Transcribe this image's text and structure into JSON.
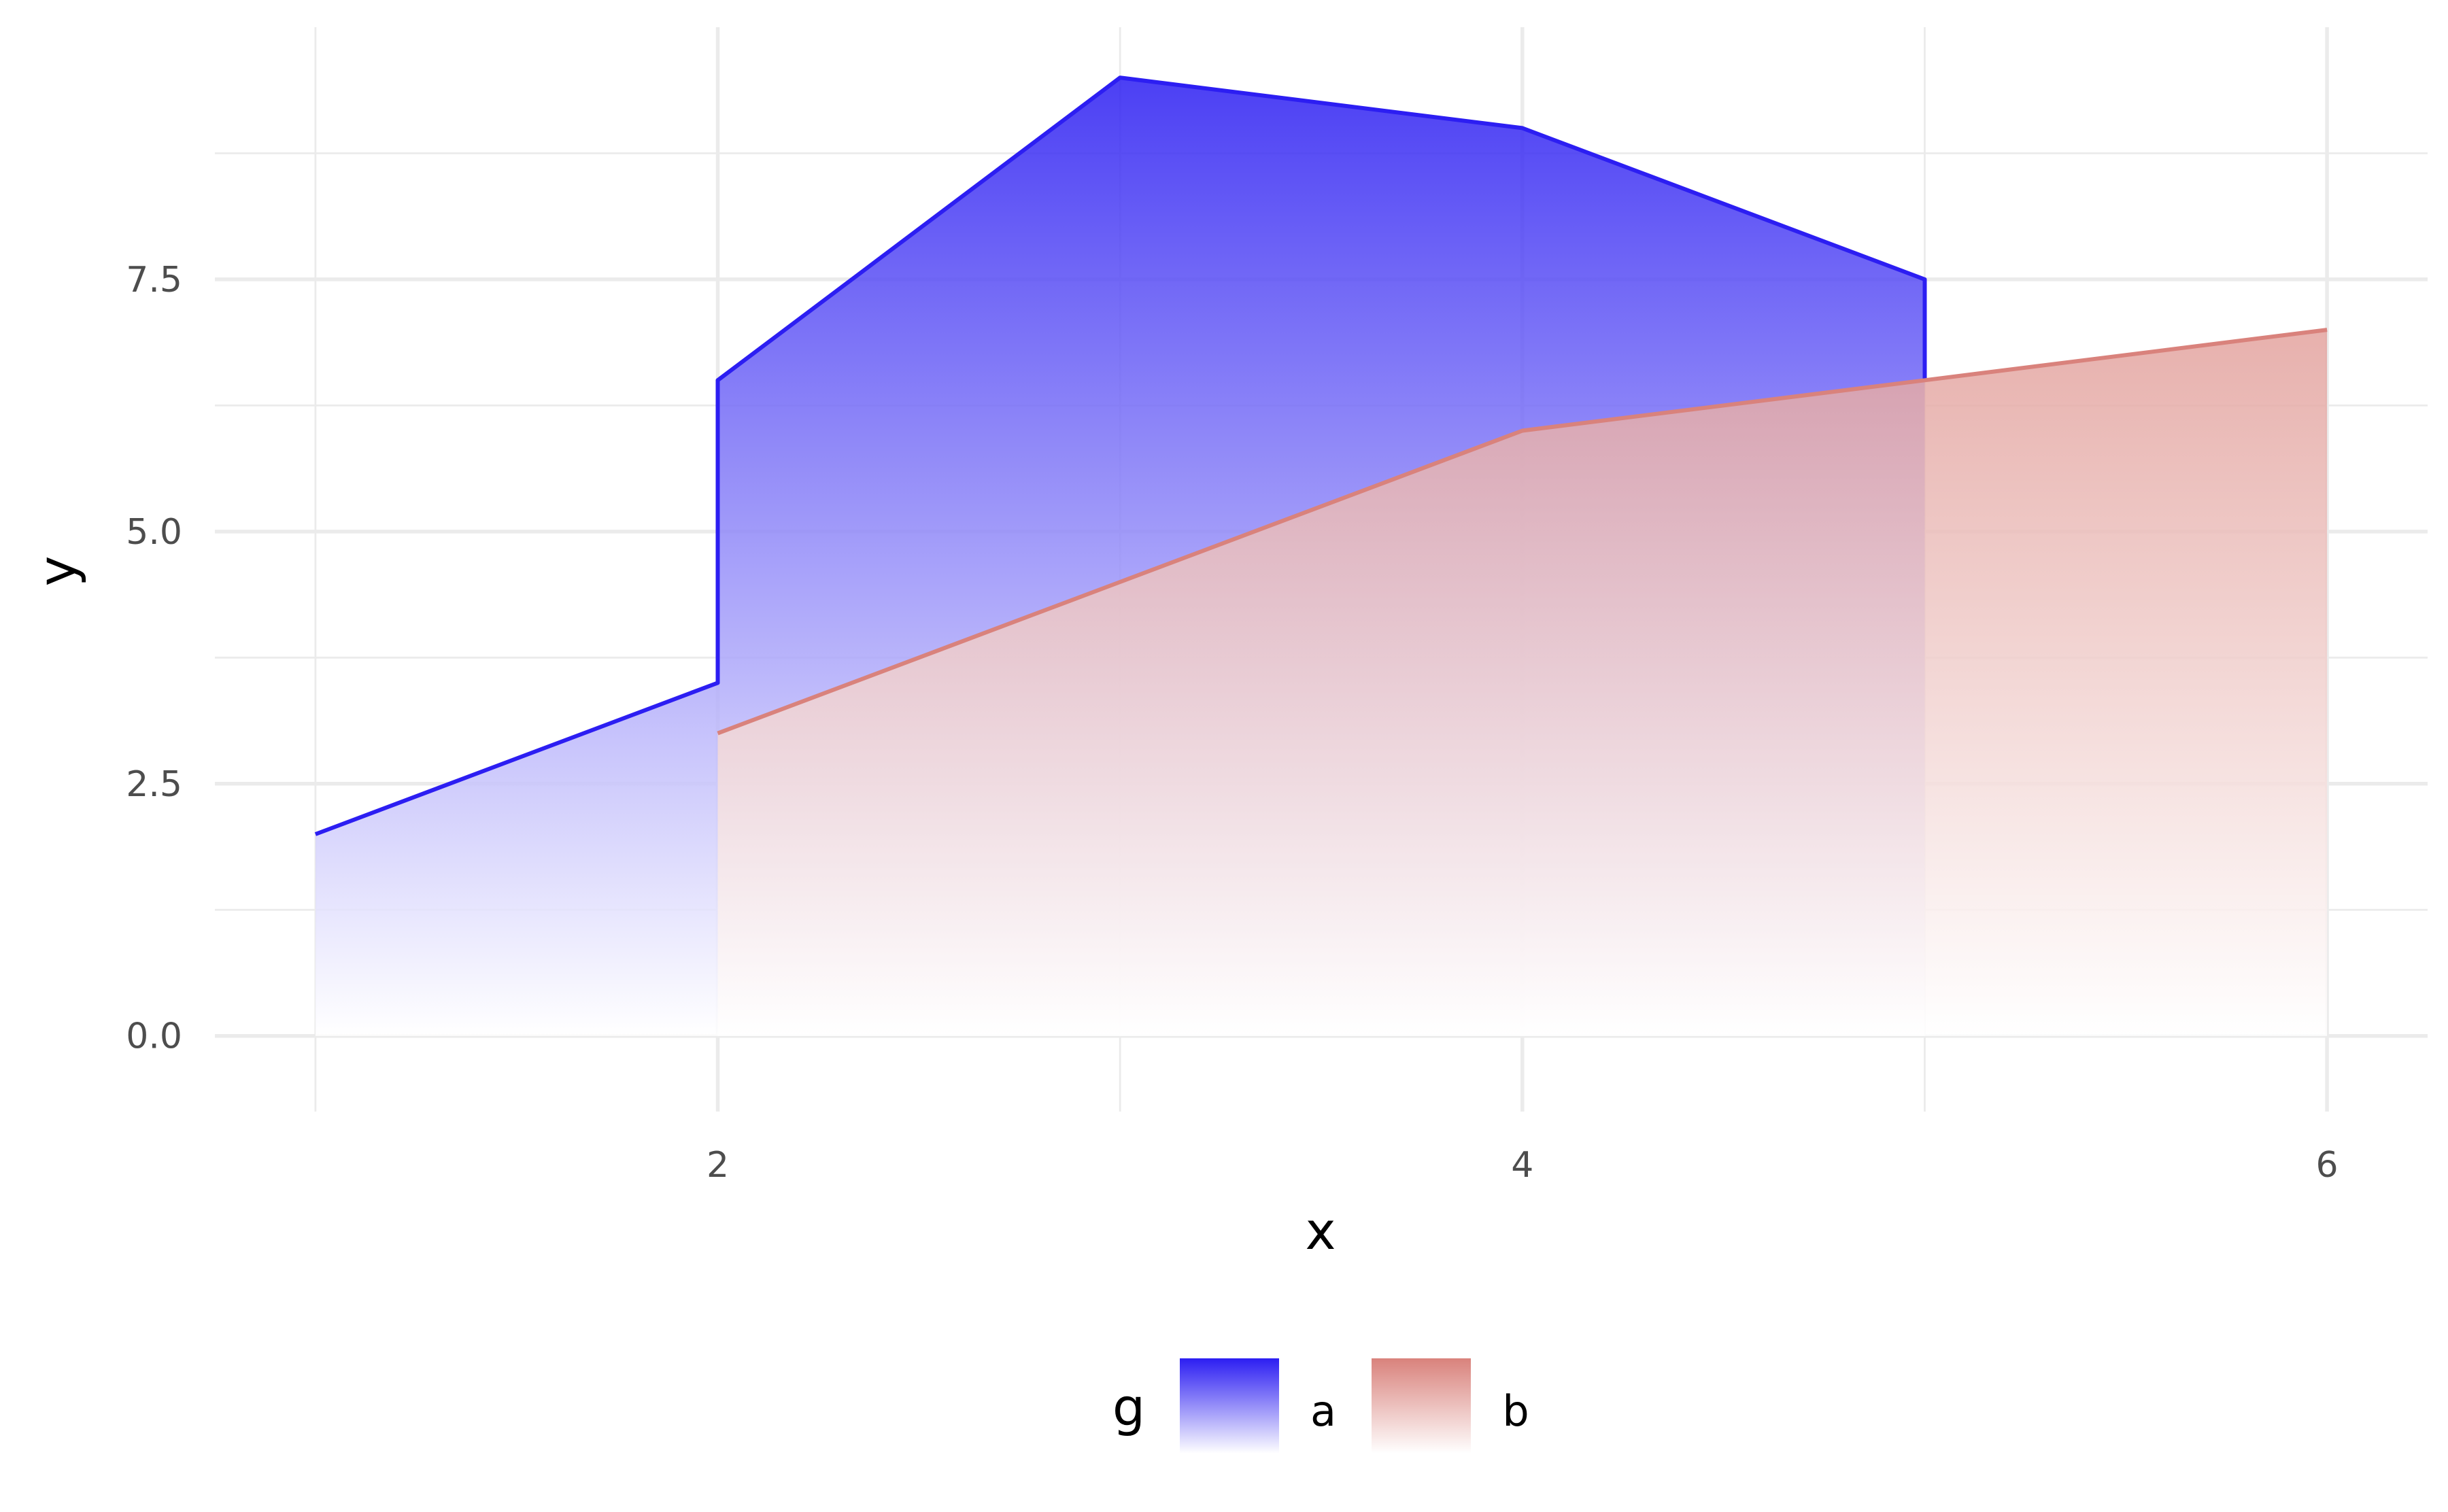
{
  "chart_data": {
    "type": "area",
    "xlabel": "x",
    "ylabel": "y",
    "xlim": [
      0.75,
      6.25
    ],
    "ylim": [
      -0.75,
      10.0
    ],
    "x_ticks": [
      2,
      4,
      6
    ],
    "x_tick_labels": [
      "2",
      "4",
      "6"
    ],
    "x_minor_gridlines": [
      1,
      3,
      5
    ],
    "y_ticks": [
      0.0,
      2.5,
      5.0,
      7.5
    ],
    "y_tick_labels": [
      "0.0",
      "2.5",
      "5.0",
      "7.5"
    ],
    "y_minor_gridlines": [
      1.25,
      3.75,
      6.25,
      8.75
    ],
    "grid": true,
    "legend": {
      "title": "g",
      "position": "bottom",
      "entries": [
        "a",
        "b"
      ]
    },
    "fill_style": "vertical gradient from series color at top to white at y = 0",
    "series": [
      {
        "name": "a",
        "color": "#2c1ef2",
        "points": [
          [
            1,
            2.0
          ],
          [
            2,
            3.5
          ],
          [
            2,
            6.5
          ],
          [
            3,
            9.5
          ],
          [
            4,
            9.0
          ],
          [
            5,
            7.5
          ],
          [
            5,
            6.5
          ]
        ]
      },
      {
        "name": "b",
        "color": "#d9827c",
        "points": [
          [
            2,
            3.0
          ],
          [
            3,
            4.5
          ],
          [
            4,
            6.0
          ],
          [
            5,
            6.5
          ],
          [
            6,
            7.0
          ]
        ]
      }
    ]
  }
}
